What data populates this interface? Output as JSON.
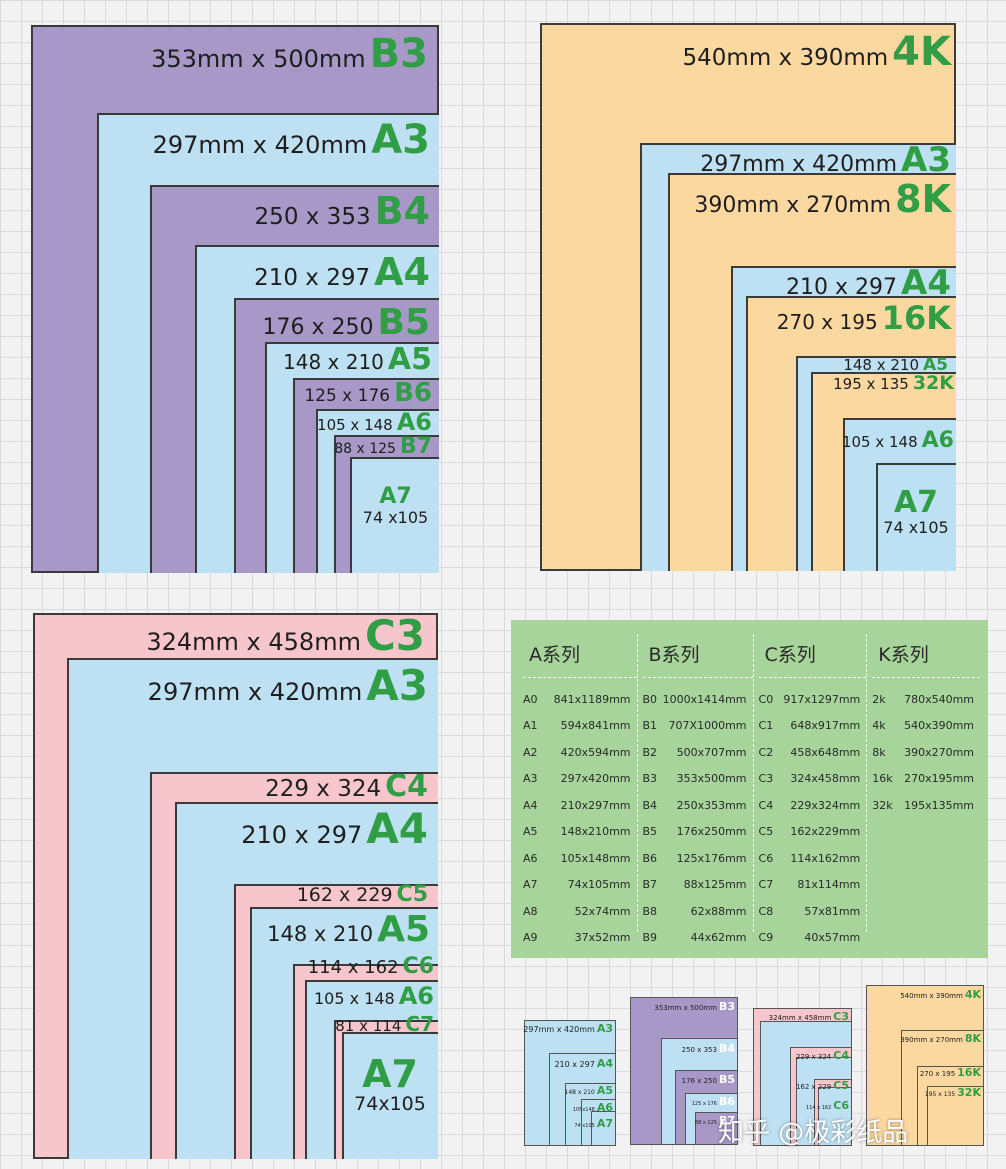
{
  "b_panel": {
    "labels": [
      {
        "dim": "353mm x 500mm",
        "code": "B3"
      },
      {
        "dim": "297mm x 420mm",
        "code": "A3"
      },
      {
        "dim": "250 x 353",
        "code": "B4"
      },
      {
        "dim": "210 x 297",
        "code": "A4"
      },
      {
        "dim": "176 x 250",
        "code": "B5"
      },
      {
        "dim": "148 x 210",
        "code": "A5"
      },
      {
        "dim": "125 x 176",
        "code": "B6"
      },
      {
        "dim": "105 x 148",
        "code": "A6"
      },
      {
        "dim": "88 x 125",
        "code": "B7"
      },
      {
        "dim": "74 x105",
        "code": "A7"
      }
    ]
  },
  "k_panel": {
    "labels": [
      {
        "dim": "540mm x 390mm",
        "code": "4K"
      },
      {
        "dim": "297mm x 420mm",
        "code": "A3"
      },
      {
        "dim": "390mm x 270mm",
        "code": "8K"
      },
      {
        "dim": "210 x 297",
        "code": "A4"
      },
      {
        "dim": "270 x 195",
        "code": "16K"
      },
      {
        "dim": "148 x 210",
        "code": "A5"
      },
      {
        "dim": "195 x 135",
        "code": "32K"
      },
      {
        "dim": "105 x 148",
        "code": "A6"
      },
      {
        "dim": "74 x105",
        "code": "A7"
      }
    ]
  },
  "c_panel": {
    "labels": [
      {
        "dim": "324mm x 458mm",
        "code": "C3"
      },
      {
        "dim": "297mm x 420mm",
        "code": "A3"
      },
      {
        "dim": "229 x 324",
        "code": "C4"
      },
      {
        "dim": "210 x 297",
        "code": "A4"
      },
      {
        "dim": "162 x 229",
        "code": "C5"
      },
      {
        "dim": "148 x 210",
        "code": "A5"
      },
      {
        "dim": "114 x 162",
        "code": "C6"
      },
      {
        "dim": "105 x 148",
        "code": "A6"
      },
      {
        "dim": "81 x 114",
        "code": "C7"
      },
      {
        "dim": "74x105",
        "code": "A7"
      }
    ]
  },
  "table": {
    "columns": [
      {
        "title": "A系列",
        "rows": [
          [
            "A0",
            "841x1189mm"
          ],
          [
            "A1",
            "594x841mm"
          ],
          [
            "A2",
            "420x594mm"
          ],
          [
            "A3",
            "297x420mm"
          ],
          [
            "A4",
            "210x297mm"
          ],
          [
            "A5",
            "148x210mm"
          ],
          [
            "A6",
            "105x148mm"
          ],
          [
            "A7",
            "74x105mm"
          ],
          [
            "A8",
            "52x74mm"
          ],
          [
            "A9",
            "37x52mm"
          ]
        ]
      },
      {
        "title": "B系列",
        "rows": [
          [
            "B0",
            "1000x1414mm"
          ],
          [
            "B1",
            "707X1000mm"
          ],
          [
            "B2",
            "500x707mm"
          ],
          [
            "B3",
            "353x500mm"
          ],
          [
            "B4",
            "250x353mm"
          ],
          [
            "B5",
            "176x250mm"
          ],
          [
            "B6",
            "125x176mm"
          ],
          [
            "B7",
            "88x125mm"
          ],
          [
            "B8",
            "62x88mm"
          ],
          [
            "B9",
            "44x62mm"
          ]
        ]
      },
      {
        "title": "C系列",
        "rows": [
          [
            "C0",
            "917x1297mm"
          ],
          [
            "C1",
            "648x917mm"
          ],
          [
            "C2",
            "458x648mm"
          ],
          [
            "C3",
            "324x458mm"
          ],
          [
            "C4",
            "229x324mm"
          ],
          [
            "C5",
            "162x229mm"
          ],
          [
            "C6",
            "114x162mm"
          ],
          [
            "C7",
            "81x114mm"
          ],
          [
            "C8",
            "57x81mm"
          ],
          [
            "C9",
            "40x57mm"
          ]
        ]
      },
      {
        "title": "K系列",
        "rows": [
          [
            "2k",
            "780x540mm"
          ],
          [
            "4k",
            "540x390mm"
          ],
          [
            "8k",
            "390x270mm"
          ],
          [
            "16k",
            "270x195mm"
          ],
          [
            "32k",
            "195x135mm"
          ]
        ]
      }
    ]
  },
  "thumbnails": {
    "a": [
      {
        "dim": "297mm x 420mm",
        "code": "A3"
      },
      {
        "dim": "210 x 297",
        "code": "A4"
      },
      {
        "dim": "148 x 210",
        "code": "A5"
      },
      {
        "dim": "105x148",
        "code": "A6"
      },
      {
        "dim": "74 x105",
        "code": "A7"
      }
    ],
    "b": [
      {
        "dim": "353mm x 500mm",
        "code": "B3"
      },
      {
        "dim": "250 x 353",
        "code": "B4"
      },
      {
        "dim": "176 x 250",
        "code": "B5"
      },
      {
        "dim": "125 x 176",
        "code": "B6"
      },
      {
        "dim": "88 x 125",
        "code": "B7"
      }
    ],
    "c": [
      {
        "dim": "324mm x 458mm",
        "code": "C3"
      },
      {
        "dim": "229 x 324",
        "code": "C4"
      },
      {
        "dim": "162 x 229",
        "code": "C5"
      },
      {
        "dim": "114 x 162",
        "code": "C6"
      }
    ],
    "k": [
      {
        "dim": "540mm x 390mm",
        "code": "4K"
      },
      {
        "dim": "390mm x 270mm",
        "code": "8K"
      },
      {
        "dim": "270 x 195",
        "code": "16K"
      },
      {
        "dim": "195 x 135",
        "code": "32K"
      }
    ]
  },
  "watermark": "知乎 @极彩纸品",
  "colors": {
    "a_series": "#bde1f3",
    "b_series": "#a798c8",
    "c_series": "#f7c6cd",
    "k_series": "#fbd8a0",
    "code_green": "#2f9e44",
    "table_bg": "#a6d49a"
  }
}
